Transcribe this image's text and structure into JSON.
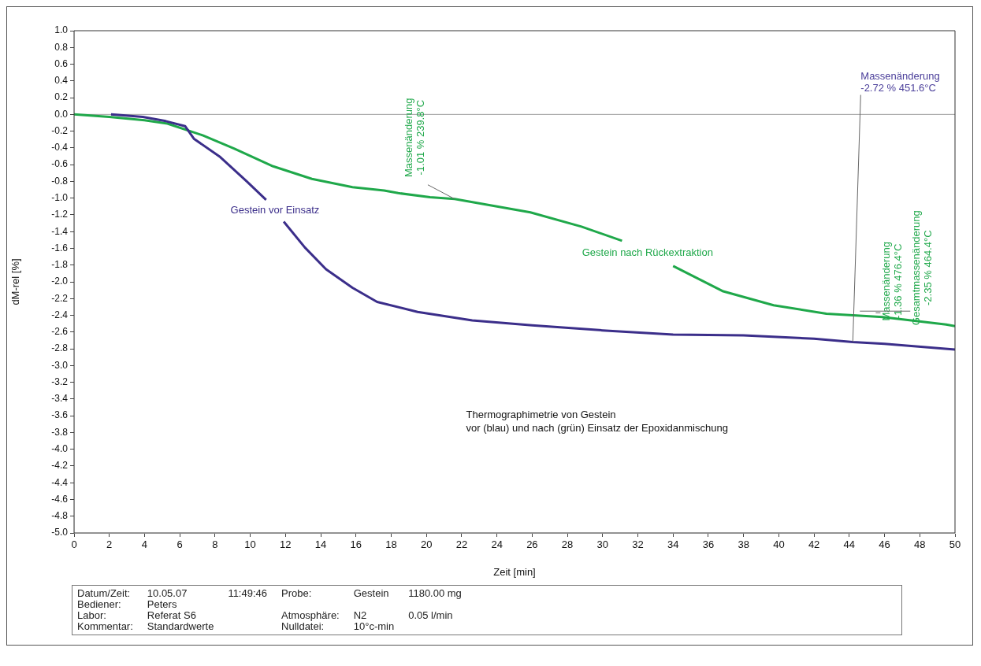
{
  "chart_data": {
    "type": "line",
    "xlabel": "Zeit [min]",
    "ylabel": "dM-rel [%]",
    "xlim": [
      0,
      50
    ],
    "ylim": [
      -5,
      1
    ],
    "xticks": [
      0,
      2,
      4,
      6,
      8,
      10,
      12,
      14,
      16,
      18,
      20,
      22,
      24,
      26,
      28,
      30,
      32,
      34,
      36,
      38,
      40,
      42,
      44,
      46,
      48,
      50
    ],
    "yticks": [
      {
        "value": 1,
        "label": "1.0"
      },
      0.8,
      0.6,
      0.4,
      0.2,
      {
        "value": 0,
        "label": "0.0"
      },
      -0.2,
      -0.4,
      -0.6,
      -0.8,
      {
        "value": -1,
        "label": "-1.0"
      },
      -1.2,
      -1.4,
      -1.6,
      -1.8,
      {
        "value": -2,
        "label": "-2.0"
      },
      -2.2,
      -2.4,
      -2.6,
      -2.8,
      {
        "value": -3,
        "label": "-3.0"
      },
      -3.2,
      -3.4,
      -3.6,
      -3.8,
      {
        "value": -4,
        "label": "-4.0"
      },
      -4.2,
      -4.4,
      -4.6,
      -4.8,
      {
        "value": -5,
        "label": "-5.0"
      }
    ],
    "grid": false,
    "legend": false,
    "series": [
      {
        "name": "Gestein vor Einsatz",
        "color": "#3b2e8a",
        "x": [
          2.1,
          3.9,
          5.2,
          6.3,
          6.8,
          8.3,
          9.8,
          10.9,
          11.4,
          11.9,
          13.1,
          14.3,
          15.8,
          17.2,
          19.5,
          22.6,
          26,
          30,
          34,
          38,
          42,
          44.2,
          46,
          50
        ],
        "values": [
          0,
          -0.03,
          -0.08,
          -0.14,
          -0.29,
          -0.51,
          -0.8,
          -1.02,
          null,
          -1.28,
          -1.59,
          -1.85,
          -2.07,
          -2.24,
          -2.36,
          -2.46,
          -2.52,
          -2.58,
          -2.63,
          -2.64,
          -2.68,
          -2.72,
          -2.74,
          -2.81
        ]
      },
      {
        "name": "Gestein nach Rückextraktion",
        "color": "#1fa84a",
        "x": [
          0,
          2,
          4,
          5.3,
          7.3,
          9.1,
          11.3,
          13.5,
          15.8,
          17.6,
          18.4,
          20.2,
          21.6,
          25.9,
          28.8,
          31.1,
          32.5,
          34,
          36.8,
          39.7,
          42.7,
          45.9,
          49.5,
          50
        ],
        "values": [
          0,
          -0.03,
          -0.07,
          -0.11,
          -0.25,
          -0.41,
          -0.62,
          -0.77,
          -0.87,
          -0.91,
          -0.94,
          -0.99,
          -1.01,
          -1.17,
          -1.34,
          -1.51,
          null,
          -1.81,
          -2.11,
          -2.28,
          -2.38,
          -2.42,
          -2.51,
          -2.53
        ]
      }
    ],
    "ref_lines": [
      {
        "axis": "y",
        "value": 0,
        "color": "#9a9a9a"
      }
    ],
    "annotations": [
      {
        "text": "Massenänderung\n-1.01 % 239.8°C",
        "x": 21.6,
        "y": -1.01
      },
      {
        "text": "Massenänderung\n-2.72 % 451.6°C",
        "x": 44.2,
        "y": -2.72
      },
      {
        "text": "Massenänderung\n-1.36 % 476.4°C",
        "x": 45.5,
        "y": -2.37
      },
      {
        "text": "Gesamtmassenänderung\n-2.35 % 464.4°C",
        "x": 44.6,
        "y": -2.35
      },
      "Thermographimetrie von Gestein\nvor (blau) und nach (grün) Einsatz der Epoxidanmischung",
      "Datum/Zeit:\t10.05.07\t11:49:46\tProbe:\tGestein\t1180.00 mg",
      "Bediener:\tPeters",
      "Labor:\tReferat S6\t\tAtmosphäre:\tN2\t0.05 l/min",
      "Kommentar:\tStandardwerte\t\tNulldatei:\t10°c-min"
    ]
  }
}
